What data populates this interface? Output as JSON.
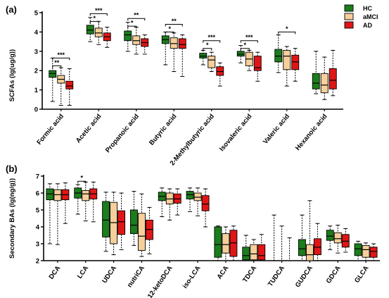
{
  "legend": [
    {
      "name": "HC",
      "color": "#1b7d1b"
    },
    {
      "name": "aMCI",
      "color": "#f7cf9a"
    },
    {
      "name": "AD",
      "color": "#e01616"
    }
  ],
  "chart_data": [
    {
      "panel_label": "(a)",
      "type": "box",
      "ylabel": "SCFAs (lg(ug/g))",
      "ylim": [
        0,
        5
      ],
      "yticks": [
        0,
        1,
        2,
        3,
        4,
        5
      ],
      "categories": [
        "Formic acid",
        "Acetic acid",
        "Propanoic acid",
        "Butyric acid",
        "2-Methylbutyric acid",
        "Isovaleric acid",
        "Valeric acid",
        "Hexanoic acid"
      ],
      "series": [
        {
          "name": "HC",
          "boxes": [
            {
              "min": 0.4,
              "q1": 1.65,
              "median": 1.85,
              "q3": 2.0,
              "max": 2.65
            },
            {
              "min": 3.5,
              "q1": 3.9,
              "median": 4.1,
              "q3": 4.35,
              "max": 4.75
            },
            {
              "min": 3.0,
              "q1": 3.55,
              "median": 3.85,
              "q3": 4.05,
              "max": 4.5
            },
            {
              "min": 2.3,
              "q1": 3.4,
              "median": 3.6,
              "q3": 3.8,
              "max": 4.0
            },
            {
              "min": 2.3,
              "q1": 2.65,
              "median": 2.75,
              "q3": 2.9,
              "max": 3.05
            },
            {
              "min": 2.4,
              "q1": 2.75,
              "median": 2.85,
              "q3": 3.0,
              "max": 3.3
            },
            {
              "min": 1.9,
              "q1": 2.45,
              "median": 2.75,
              "q3": 3.1,
              "max": 3.85
            },
            {
              "min": 0.8,
              "q1": 1.05,
              "median": 1.35,
              "q3": 1.85,
              "max": 3.0
            }
          ]
        },
        {
          "name": "aMCI",
          "boxes": [
            {
              "min": 0.2,
              "q1": 1.35,
              "median": 1.55,
              "q3": 1.75,
              "max": 2.15
            },
            {
              "min": 3.35,
              "q1": 3.75,
              "median": 3.95,
              "q3": 4.2,
              "max": 4.55
            },
            {
              "min": 2.85,
              "q1": 3.35,
              "median": 3.55,
              "q3": 3.8,
              "max": 4.25
            },
            {
              "min": 1.95,
              "q1": 3.15,
              "median": 3.4,
              "q3": 3.7,
              "max": 3.95
            },
            {
              "min": 1.95,
              "q1": 2.15,
              "median": 2.55,
              "q3": 2.75,
              "max": 2.95
            },
            {
              "min": 2.0,
              "q1": 2.25,
              "median": 2.6,
              "q3": 2.95,
              "max": 3.05
            },
            {
              "min": 1.2,
              "q1": 2.05,
              "median": 2.75,
              "q3": 3.05,
              "max": 3.25
            },
            {
              "min": 0.5,
              "q1": 0.85,
              "median": 1.25,
              "q3": 1.85,
              "max": 2.7
            }
          ]
        },
        {
          "name": "AD",
          "boxes": [
            {
              "min": 0.2,
              "q1": 1.05,
              "median": 1.2,
              "q3": 1.45,
              "max": 2.1
            },
            {
              "min": 3.2,
              "q1": 3.55,
              "median": 3.75,
              "q3": 3.95,
              "max": 4.25
            },
            {
              "min": 2.85,
              "q1": 3.25,
              "median": 3.45,
              "q3": 3.65,
              "max": 3.85
            },
            {
              "min": 1.7,
              "q1": 3.15,
              "median": 3.35,
              "q3": 3.65,
              "max": 3.85
            },
            {
              "min": 1.2,
              "q1": 1.75,
              "median": 1.95,
              "q3": 2.2,
              "max": 2.4
            },
            {
              "min": 1.45,
              "q1": 2.0,
              "median": 2.15,
              "q3": 2.75,
              "max": 2.95
            },
            {
              "min": 1.45,
              "q1": 2.05,
              "median": 2.45,
              "q3": 2.8,
              "max": 3.15
            },
            {
              "min": 0.7,
              "q1": 1.05,
              "median": 1.5,
              "q3": 2.1,
              "max": 3.05
            }
          ]
        }
      ],
      "significance": [
        {
          "category": 0,
          "from": "HC",
          "to": "aMCI",
          "label": "**",
          "level": 2.25
        },
        {
          "category": 0,
          "from": "HC",
          "to": "AD",
          "label": "***",
          "level": 2.65
        },
        {
          "category": 1,
          "from": "HC",
          "to": "aMCI",
          "label": "*",
          "level": 4.55
        },
        {
          "category": 1,
          "from": "HC",
          "to": "AD",
          "label": "***",
          "level": 4.95
        },
        {
          "category": 2,
          "from": "HC",
          "to": "aMCI",
          "label": "*",
          "level": 4.3
        },
        {
          "category": 2,
          "from": "HC",
          "to": "AD",
          "label": "**",
          "level": 4.7
        },
        {
          "category": 3,
          "from": "HC",
          "to": "aMCI",
          "label": "*",
          "level": 4.0
        },
        {
          "category": 3,
          "from": "HC",
          "to": "AD",
          "label": "**",
          "level": 4.4
        },
        {
          "category": 4,
          "from": "HC",
          "to": "aMCI",
          "label": "*",
          "level": 3.15
        },
        {
          "category": 4,
          "from": "HC",
          "to": "AD",
          "label": "***",
          "level": 3.55
        },
        {
          "category": 5,
          "from": "HC",
          "to": "aMCI",
          "label": "*",
          "level": 3.15
        },
        {
          "category": 5,
          "from": "HC",
          "to": "AD",
          "label": "***",
          "level": 3.55
        },
        {
          "category": 6,
          "from": "HC",
          "to": "AD",
          "label": "*",
          "level": 4.0
        }
      ]
    },
    {
      "panel_label": "(b)",
      "type": "box",
      "ylabel": "Secondary BAs (lg(ng/g))",
      "ylim": [
        2,
        7
      ],
      "yticks": [
        2,
        3,
        4,
        5,
        6,
        7
      ],
      "categories": [
        "DCA",
        "LCA",
        "UDCA",
        "nutriCA",
        "12-ketoDCA",
        "iso-LCA",
        "ACA",
        "TDCA",
        "TUDCA",
        "GUDCA",
        "GDCA",
        "GLCA"
      ],
      "series": [
        {
          "name": "HC",
          "boxes": [
            {
              "min": 3.0,
              "q1": 5.6,
              "median": 5.95,
              "q3": 6.25,
              "max": 6.55
            },
            {
              "min": 4.75,
              "q1": 5.7,
              "median": 6.0,
              "q3": 6.3,
              "max": 6.5
            },
            {
              "min": 2.55,
              "q1": 3.4,
              "median": 4.4,
              "q3": 5.5,
              "max": 6.05
            },
            {
              "min": 2.9,
              "q1": 3.6,
              "median": 4.1,
              "q3": 5.0,
              "max": 6.1
            },
            {
              "min": 4.6,
              "q1": 5.55,
              "median": 5.8,
              "q3": 6.05,
              "max": 6.3
            },
            {
              "min": 4.9,
              "q1": 5.65,
              "median": 5.9,
              "q3": 6.1,
              "max": 6.3
            },
            {
              "min": 2.0,
              "q1": 2.2,
              "median": 2.95,
              "q3": 4.0,
              "max": 4.05
            },
            {
              "min": 2.0,
              "q1": 2.05,
              "median": 2.3,
              "q3": 2.8,
              "max": 3.5
            },
            {
              "min": 2.0,
              "q1": 2.0,
              "median": 2.0,
              "q3": 2.0,
              "max": 4.7
            },
            {
              "min": 2.0,
              "q1": 2.3,
              "median": 2.7,
              "q3": 3.25,
              "max": 4.7
            },
            {
              "min": 2.65,
              "q1": 3.2,
              "median": 3.45,
              "q3": 3.8,
              "max": 4.05
            },
            {
              "min": 2.0,
              "q1": 2.3,
              "median": 2.7,
              "q3": 3.0,
              "max": 3.15
            }
          ]
        },
        {
          "name": "aMCI",
          "boxes": [
            {
              "min": 2.95,
              "q1": 5.55,
              "median": 5.9,
              "q3": 6.2,
              "max": 6.55
            },
            {
              "min": 4.35,
              "q1": 5.55,
              "median": 5.95,
              "q3": 6.15,
              "max": 6.65
            },
            {
              "min": 2.35,
              "q1": 3.0,
              "median": 4.25,
              "q3": 5.45,
              "max": 6.05
            },
            {
              "min": 2.25,
              "q1": 2.6,
              "median": 3.45,
              "q3": 4.8,
              "max": 5.95
            },
            {
              "min": 4.4,
              "q1": 5.35,
              "median": 5.65,
              "q3": 6.0,
              "max": 6.25
            },
            {
              "min": 4.65,
              "q1": 5.55,
              "median": 5.75,
              "q3": 6.0,
              "max": 6.3
            },
            {
              "min": 2.0,
              "q1": 2.45,
              "median": 2.95,
              "q3": 3.6,
              "max": 4.0
            },
            {
              "min": 2.0,
              "q1": 2.05,
              "median": 2.4,
              "q3": 2.95,
              "max": 3.25
            },
            {
              "min": 2.0,
              "q1": 2.0,
              "median": 2.0,
              "q3": 2.0,
              "max": 4.05
            },
            {
              "min": 2.0,
              "q1": 2.0,
              "median": 2.35,
              "q3": 2.95,
              "max": 5.55
            },
            {
              "min": 2.45,
              "q1": 3.05,
              "median": 3.3,
              "q3": 3.65,
              "max": 4.1
            },
            {
              "min": 2.0,
              "q1": 2.2,
              "median": 2.65,
              "q3": 2.9,
              "max": 3.05
            }
          ]
        },
        {
          "name": "AD",
          "boxes": [
            {
              "min": 4.2,
              "q1": 5.6,
              "median": 5.9,
              "q3": 6.2,
              "max": 6.6
            },
            {
              "min": 4.3,
              "q1": 5.65,
              "median": 5.95,
              "q3": 6.25,
              "max": 6.65
            },
            {
              "min": 2.65,
              "q1": 3.55,
              "median": 4.3,
              "q3": 4.95,
              "max": 6.0
            },
            {
              "min": 2.4,
              "q1": 3.25,
              "median": 3.85,
              "q3": 4.4,
              "max": 5.15
            },
            {
              "min": 4.7,
              "q1": 5.4,
              "median": 5.65,
              "q3": 5.95,
              "max": 6.25
            },
            {
              "min": 4.0,
              "q1": 4.95,
              "median": 5.35,
              "q3": 5.85,
              "max": 6.25
            },
            {
              "min": 2.0,
              "q1": 2.25,
              "median": 3.05,
              "q3": 3.8,
              "max": 4.05
            },
            {
              "min": 2.0,
              "q1": 2.05,
              "median": 2.3,
              "q3": 2.95,
              "max": 3.55
            },
            {
              "min": 2.0,
              "q1": 2.0,
              "median": 2.0,
              "q3": 2.0,
              "max": 3.35
            },
            {
              "min": 2.0,
              "q1": 2.35,
              "median": 2.8,
              "q3": 3.3,
              "max": 4.2
            },
            {
              "min": 2.5,
              "q1": 2.8,
              "median": 3.15,
              "q3": 3.55,
              "max": 3.9
            },
            {
              "min": 2.0,
              "q1": 2.2,
              "median": 2.55,
              "q3": 2.8,
              "max": 3.0
            }
          ]
        }
      ],
      "significance": [
        {
          "category": 1,
          "from": "HC",
          "to": "aMCI",
          "label": "*",
          "level": 6.7
        }
      ]
    }
  ]
}
